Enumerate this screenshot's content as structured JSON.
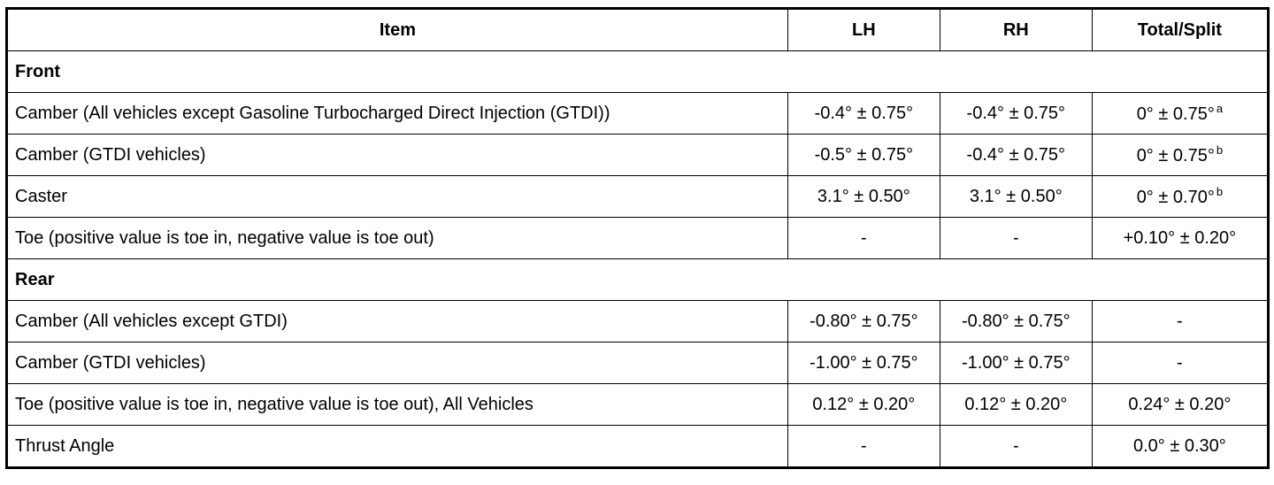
{
  "headers": {
    "item": "Item",
    "lh": "LH",
    "rh": "RH",
    "total": "Total/Split"
  },
  "sections": [
    {
      "title": "Front",
      "rows": [
        {
          "item": "Camber (All vehicles except Gasoline Turbocharged Direct Injection (GTDI))",
          "lh": "-0.4° ± 0.75°",
          "rh": "-0.4° ± 0.75°",
          "total": "0° ± 0.75°",
          "note": "a"
        },
        {
          "item": "Camber (GTDI vehicles)",
          "lh": "-0.5° ± 0.75°",
          "rh": "-0.4° ± 0.75°",
          "total": "0° ± 0.75°",
          "note": "b"
        },
        {
          "item": "Caster",
          "lh": "3.1° ± 0.50°",
          "rh": "3.1° ± 0.50°",
          "total": "0° ± 0.70°",
          "note": "b"
        },
        {
          "item": "Toe (positive value is toe in, negative value is toe out)",
          "lh": "-",
          "rh": "-",
          "total": "+0.10° ± 0.20°",
          "note": ""
        }
      ]
    },
    {
      "title": "Rear",
      "rows": [
        {
          "item": "Camber (All vehicles except GTDI)",
          "lh": "-0.80° ± 0.75°",
          "rh": "-0.80° ± 0.75°",
          "total": "-",
          "note": ""
        },
        {
          "item": "Camber (GTDI vehicles)",
          "lh": "-1.00° ± 0.75°",
          "rh": "-1.00° ± 0.75°",
          "total": "-",
          "note": ""
        },
        {
          "item": "Toe (positive value is toe in, negative value is toe out), All Vehicles",
          "lh": "0.12° ± 0.20°",
          "rh": "0.12° ± 0.20°",
          "total": "0.24° ± 0.20°",
          "note": ""
        },
        {
          "item": "Thrust Angle",
          "lh": "-",
          "rh": "-",
          "total": "0.0° ± 0.30°",
          "note": ""
        }
      ]
    }
  ]
}
